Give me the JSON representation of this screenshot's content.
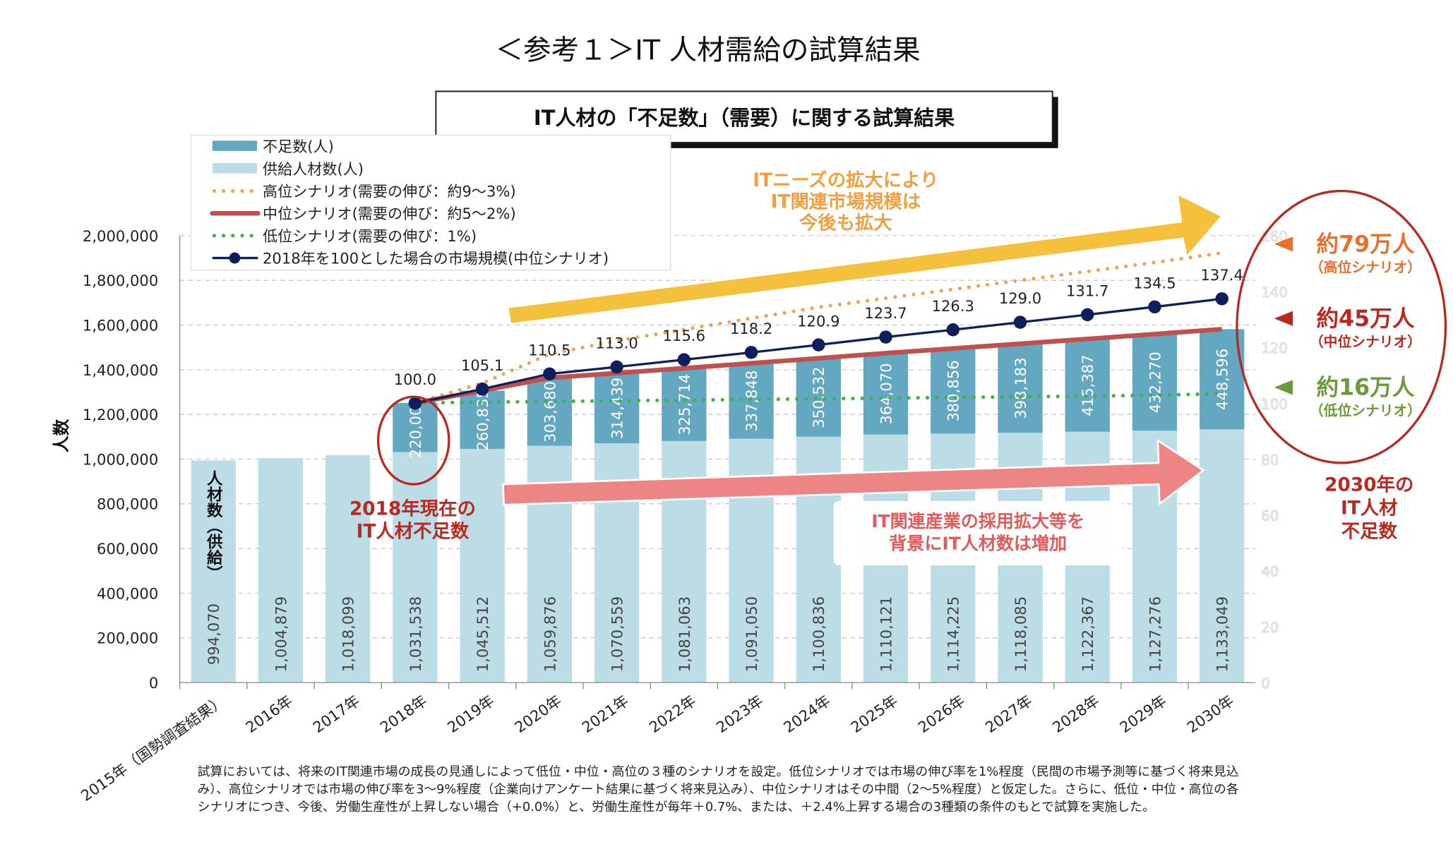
{
  "page_title": "＜参考１＞IT 人材需給の試算結果",
  "box_title": "IT人材の「不足数」（需要）に関する試算結果",
  "colors": {
    "shortage": "#63a7c1",
    "supply": "#bcdde6",
    "high": "#f2a25a",
    "mid": "#c0504d",
    "low": "#3fb34f",
    "market": "#0e1f5b",
    "yellow_arrow": "#f5c13d",
    "pink_arrow": "#ee8585",
    "ellipse": "#b72a22"
  },
  "chart_data": {
    "type": "bar",
    "stacked": true,
    "ylabel": "人数",
    "ylim": [
      0,
      2000000
    ],
    "y_ticks": [
      "0",
      "200,000",
      "400,000",
      "600,000",
      "800,000",
      "1,000,000",
      "1,200,000",
      "1,400,000",
      "1,600,000",
      "1,800,000",
      "2,000,000"
    ],
    "y2lim": [
      0,
      160
    ],
    "y2_ticks": [
      "0",
      "20",
      "40",
      "60",
      "80",
      "100",
      "120",
      "140",
      "160"
    ],
    "grid": true,
    "legend_placement": "top-left",
    "categories": [
      "2015年（国勢調査結果）",
      "2016年",
      "2017年",
      "2018年",
      "2019年",
      "2020年",
      "2021年",
      "2022年",
      "2023年",
      "2024年",
      "2025年",
      "2026年",
      "2027年",
      "2028年",
      "2029年",
      "2030年"
    ],
    "series": [
      {
        "name": "供給人材数(人)",
        "kind": "bar",
        "values": [
          994070,
          1004879,
          1018099,
          1031538,
          1045512,
          1059876,
          1070559,
          1081063,
          1091050,
          1100836,
          1110121,
          1114225,
          1118085,
          1122367,
          1127276,
          1133049
        ],
        "labels": [
          "994,070",
          "1,004,879",
          "1,018,099",
          "1,031,538",
          "1,045,512",
          "1,059,876",
          "1,070,559",
          "1,081,063",
          "1,091,050",
          "1,100,836",
          "1,110,121",
          "1,114,225",
          "1,118,085",
          "1,122,367",
          "1,127,276",
          "1,133,049"
        ]
      },
      {
        "name": "不足数(人)",
        "kind": "bar",
        "values": [
          null,
          null,
          null,
          220000,
          260835,
          303680,
          314439,
          325714,
          337848,
          350532,
          364070,
          380856,
          398183,
          415387,
          432270,
          448596
        ],
        "labels": [
          "",
          "",
          "",
          "220,000",
          "260,835",
          "303,680",
          "314,439",
          "325,714",
          "337,848",
          "350,532",
          "364,070",
          "380,856",
          "398,183",
          "415,387",
          "432,270",
          "448,596"
        ]
      },
      {
        "name": "高位シナリオ(需要の伸び：約9～3%)",
        "kind": "dotted-line",
        "values": [
          null,
          null,
          null,
          1251538,
          1340000,
          1470000,
          1530000,
          1580000,
          1630000,
          1680000,
          1720000,
          1760000,
          1800000,
          1840000,
          1880000,
          1923000
        ]
      },
      {
        "name": "中位シナリオ(需要の伸び：約5～2%)",
        "kind": "line",
        "values": [
          null,
          null,
          null,
          1251538,
          1306347,
          1363556,
          1384998,
          1406777,
          1428898,
          1451368,
          1474191,
          1495081,
          1516268,
          1537754,
          1559546,
          1581645
        ]
      },
      {
        "name": "低位シナリオ(需要の伸び：1%)",
        "kind": "dotted-line",
        "values": [
          null,
          null,
          null,
          1251538,
          1255000,
          1258000,
          1261000,
          1264000,
          1267000,
          1270000,
          1273000,
          1276000,
          1279000,
          1282000,
          1286000,
          1293000
        ]
      },
      {
        "name": "2018年を100とした場合の市場規模(中位シナリオ)",
        "kind": "line-marker",
        "axis": "y2",
        "values": [
          null,
          null,
          null,
          100.0,
          105.1,
          110.5,
          113.0,
          115.6,
          118.2,
          120.9,
          123.7,
          126.3,
          129.0,
          131.7,
          134.5,
          137.4
        ],
        "labels": [
          "",
          "",
          "",
          "100.0",
          "105.1",
          "110.5",
          "113.0",
          "115.6",
          "118.2",
          "120.9",
          "123.7",
          "126.3",
          "129.0",
          "131.7",
          "134.5",
          "137.4"
        ]
      }
    ],
    "supply_bar_caption": "人材数（供給）",
    "annotations": {
      "yellow_arrow": [
        "ITニーズの拡大により",
        "IT関連市場規模は",
        "今後も拡大"
      ],
      "pink_arrow": [
        "IT関連産業の採用拡大等を",
        "背景にIT人材数は増加"
      ],
      "ellipse_2018": [
        "2018年現在の",
        "IT人材不足数"
      ],
      "high_value": "約79万人",
      "high_sub": "（高位シナリオ）",
      "mid_value": "約45万人",
      "mid_sub": "（中位シナリオ）",
      "low_value": "約16万人",
      "low_sub": "（低位シナリオ）",
      "ellipse_2030": [
        "2030年の",
        "IT人材",
        "不足数"
      ]
    }
  },
  "footnote": [
    "試算においては、将来のIT関連市場の成長の見通しによって低位・中位・高位の３種のシナリオを設定。低位シナリオでは市場の伸び率を1%程度（民間の市場予測等に基づく将来見込",
    "み）、高位シナリオでは市場の伸び率を3～9%程度（企業向けアンケート結果に基づく将来見込み）、中位シナリオはその中間（2～5%程度）と仮定した。さらに、低位・中位・高位の各",
    "シナリオにつき、今後、労働生産性が上昇しない場合（+0.0%）と、労働生産性が毎年＋0.7%、または、＋2.4%上昇する場合の3種類の条件のもとで試算を実施した。"
  ]
}
